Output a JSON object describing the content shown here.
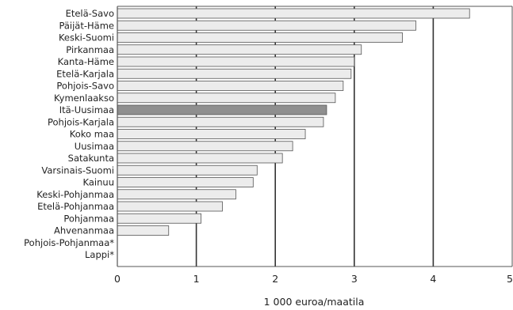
{
  "chart_data": {
    "type": "bar",
    "orientation": "horizontal",
    "categories": [
      "Etelä-Savo",
      "Päijät-Häme",
      "Keski-Suomi",
      "Pirkanmaa",
      "Kanta-Häme",
      "Etelä-Karjala",
      "Pohjois-Savo",
      "Kymenlaakso",
      "Itä-Uusimaa",
      "Pohjois-Karjala",
      "Koko maa",
      "Uusimaa",
      "Satakunta",
      "Varsinais-Suomi",
      "Kainuu",
      "Keski-Pohjanmaa",
      "Etelä-Pohjanmaa",
      "Pohjanmaa",
      "Ahvenanmaa",
      "Pohjois-Pohjanmaa*",
      "Lappi*"
    ],
    "values": [
      4.46,
      3.78,
      3.61,
      3.09,
      3.0,
      2.96,
      2.86,
      2.76,
      2.65,
      2.61,
      2.38,
      2.22,
      2.09,
      1.77,
      1.72,
      1.5,
      1.33,
      1.06,
      0.65,
      null,
      null
    ],
    "highlight_category": "Itä-Uusimaa",
    "xlabel": "1 000 euroa/maatila",
    "ylabel": "",
    "title": "",
    "xlim": [
      0,
      5
    ],
    "xticks": [
      "0",
      "1",
      "2",
      "3",
      "4",
      "5"
    ],
    "grid": "vertical lines at each integer",
    "colors": {
      "bar_fill": "#ececec",
      "bar_highlight": "#8f8f8f",
      "bar_stroke": "#555555",
      "grid": "#333333",
      "frame": "#555555"
    }
  }
}
